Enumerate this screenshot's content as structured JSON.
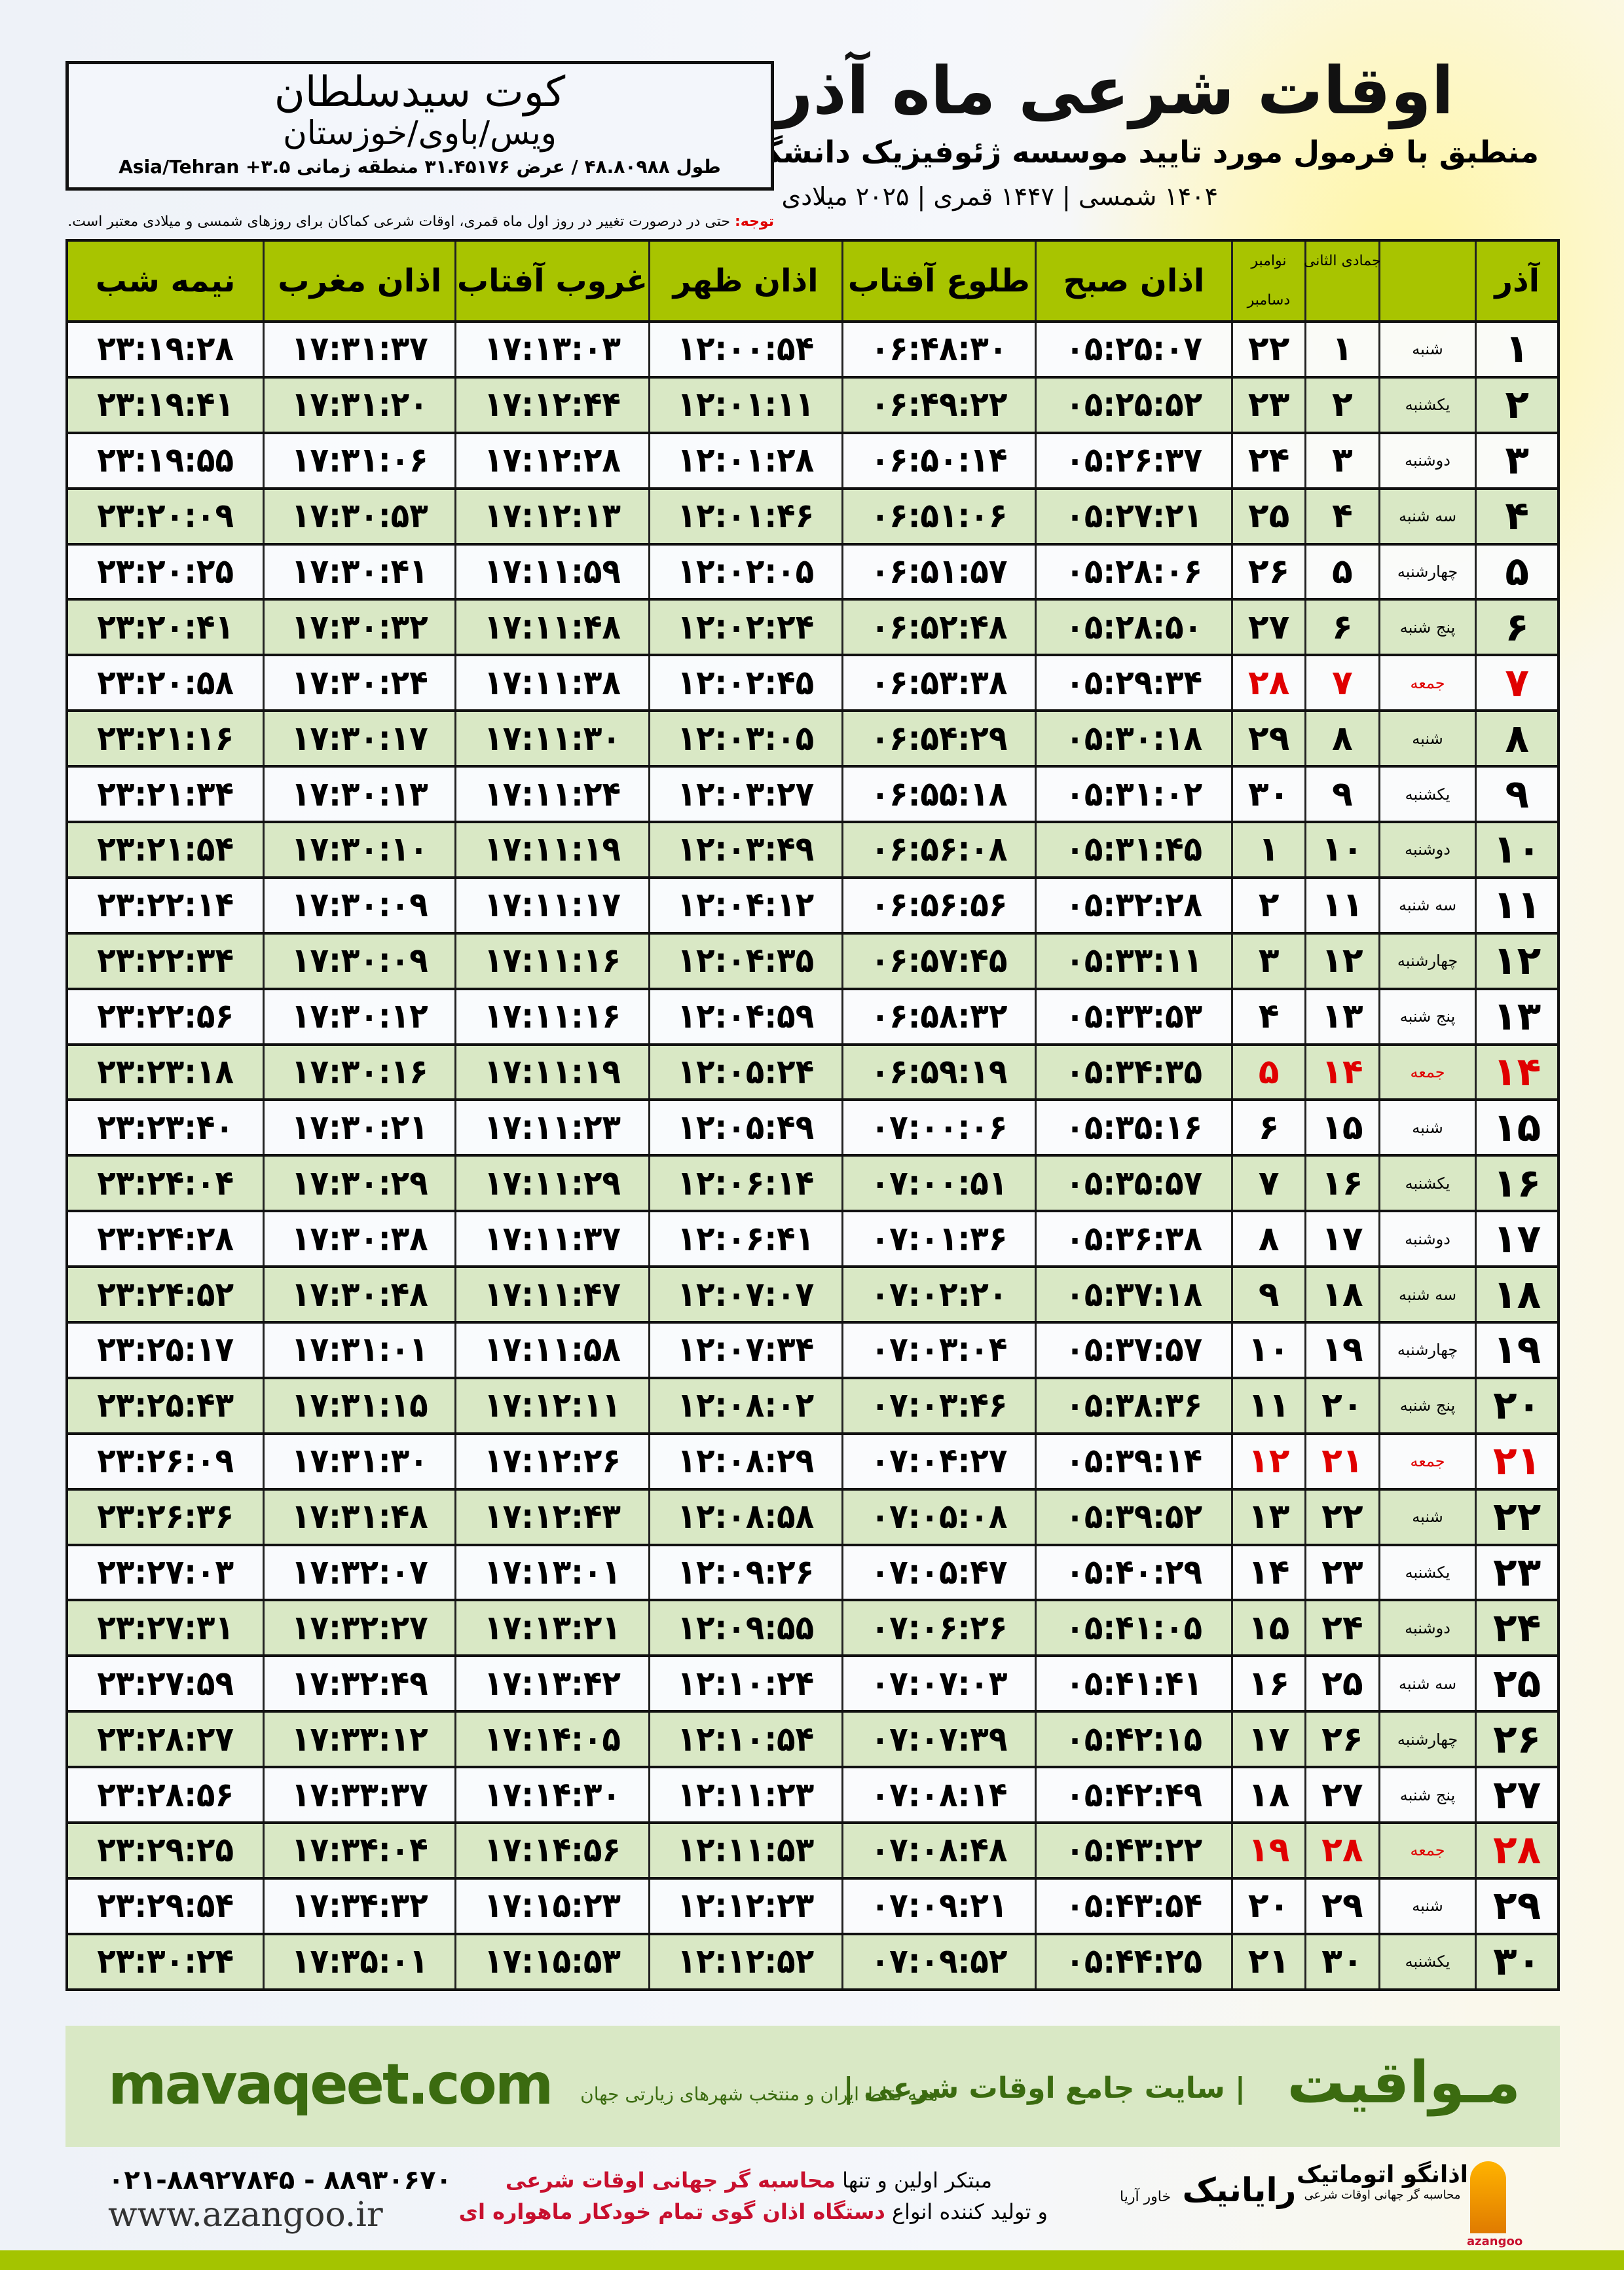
{
  "header": {
    "title": "اوقات شرعی ماه آذر",
    "subtitle": "منطبق با فرمول مورد تایید موسسه ژئوفیزیک دانشگاه تهران",
    "dates": "۱۴۰۴ شمسی | ۱۴۴۷ قمری | ۲۰۲۵ میلادی"
  },
  "location": {
    "city": "کوت سیدسلطان",
    "province": "ویس/باوی/خوزستان",
    "coords": "طول ۴۸.۸۰۹۸۸ / عرض ۳۱.۴۵۱۷۶ منطقه زمانی ۳.۵+ Asia/Tehran"
  },
  "note": {
    "label": "توجه:",
    "text": " حتی در درصورت تغییر در روز اول ماه قمری، اوقات شرعی کماکان برای روزهای شمسی و میلادی معتبر است."
  },
  "columns": {
    "azar": "آذر",
    "hijri": "جمادی الثانی",
    "greg_top": "نوامبر",
    "greg_bottom": "دسامبر",
    "sobh": "اذان صبح",
    "tolu": "طلوع آفتاب",
    "zohr": "اذان ظهر",
    "ghorub": "غروب آفتاب",
    "maghrib": "اذان مغرب",
    "nimeh": "نیمه شب"
  },
  "colors": {
    "header_green": "#a8c400",
    "row_green": "#d9e8c5",
    "friday_red": "#e00000",
    "brand_green": "#3b6b10"
  },
  "rows": [
    [
      "۱",
      "شنبه",
      "۱",
      "۲۲",
      "۰۵:۲۵:۰۷",
      "۰۶:۴۸:۳۰",
      "۱۲:۰۰:۵۴",
      "۱۷:۱۳:۰۳",
      "۱۷:۳۱:۳۷",
      "۲۳:۱۹:۲۸"
    ],
    [
      "۲",
      "یکشنبه",
      "۲",
      "۲۳",
      "۰۵:۲۵:۵۲",
      "۰۶:۴۹:۲۲",
      "۱۲:۰۱:۱۱",
      "۱۷:۱۲:۴۴",
      "۱۷:۳۱:۲۰",
      "۲۳:۱۹:۴۱"
    ],
    [
      "۳",
      "دوشنبه",
      "۳",
      "۲۴",
      "۰۵:۲۶:۳۷",
      "۰۶:۵۰:۱۴",
      "۱۲:۰۱:۲۸",
      "۱۷:۱۲:۲۸",
      "۱۷:۳۱:۰۶",
      "۲۳:۱۹:۵۵"
    ],
    [
      "۴",
      "سه شنبه",
      "۴",
      "۲۵",
      "۰۵:۲۷:۲۱",
      "۰۶:۵۱:۰۶",
      "۱۲:۰۱:۴۶",
      "۱۷:۱۲:۱۳",
      "۱۷:۳۰:۵۳",
      "۲۳:۲۰:۰۹"
    ],
    [
      "۵",
      "چهارشنبه",
      "۵",
      "۲۶",
      "۰۵:۲۸:۰۶",
      "۰۶:۵۱:۵۷",
      "۱۲:۰۲:۰۵",
      "۱۷:۱۱:۵۹",
      "۱۷:۳۰:۴۱",
      "۲۳:۲۰:۲۵"
    ],
    [
      "۶",
      "پنج شنبه",
      "۶",
      "۲۷",
      "۰۵:۲۸:۵۰",
      "۰۶:۵۲:۴۸",
      "۱۲:۰۲:۲۴",
      "۱۷:۱۱:۴۸",
      "۱۷:۳۰:۳۲",
      "۲۳:۲۰:۴۱"
    ],
    [
      "۷",
      "جمعه",
      "۷",
      "۲۸",
      "۰۵:۲۹:۳۴",
      "۰۶:۵۳:۳۸",
      "۱۲:۰۲:۴۵",
      "۱۷:۱۱:۳۸",
      "۱۷:۳۰:۲۴",
      "۲۳:۲۰:۵۸"
    ],
    [
      "۸",
      "شنبه",
      "۸",
      "۲۹",
      "۰۵:۳۰:۱۸",
      "۰۶:۵۴:۲۹",
      "۱۲:۰۳:۰۵",
      "۱۷:۱۱:۳۰",
      "۱۷:۳۰:۱۷",
      "۲۳:۲۱:۱۶"
    ],
    [
      "۹",
      "یکشنبه",
      "۹",
      "۳۰",
      "۰۵:۳۱:۰۲",
      "۰۶:۵۵:۱۸",
      "۱۲:۰۳:۲۷",
      "۱۷:۱۱:۲۴",
      "۱۷:۳۰:۱۳",
      "۲۳:۲۱:۳۴"
    ],
    [
      "۱۰",
      "دوشنبه",
      "۱۰",
      "۱",
      "۰۵:۳۱:۴۵",
      "۰۶:۵۶:۰۸",
      "۱۲:۰۳:۴۹",
      "۱۷:۱۱:۱۹",
      "۱۷:۳۰:۱۰",
      "۲۳:۲۱:۵۴"
    ],
    [
      "۱۱",
      "سه شنبه",
      "۱۱",
      "۲",
      "۰۵:۳۲:۲۸",
      "۰۶:۵۶:۵۶",
      "۱۲:۰۴:۱۲",
      "۱۷:۱۱:۱۷",
      "۱۷:۳۰:۰۹",
      "۲۳:۲۲:۱۴"
    ],
    [
      "۱۲",
      "چهارشنبه",
      "۱۲",
      "۳",
      "۰۵:۳۳:۱۱",
      "۰۶:۵۷:۴۵",
      "۱۲:۰۴:۳۵",
      "۱۷:۱۱:۱۶",
      "۱۷:۳۰:۰۹",
      "۲۳:۲۲:۳۴"
    ],
    [
      "۱۳",
      "پنج شنبه",
      "۱۳",
      "۴",
      "۰۵:۳۳:۵۳",
      "۰۶:۵۸:۳۲",
      "۱۲:۰۴:۵۹",
      "۱۷:۱۱:۱۶",
      "۱۷:۳۰:۱۲",
      "۲۳:۲۲:۵۶"
    ],
    [
      "۱۴",
      "جمعه",
      "۱۴",
      "۵",
      "۰۵:۳۴:۳۵",
      "۰۶:۵۹:۱۹",
      "۱۲:۰۵:۲۴",
      "۱۷:۱۱:۱۹",
      "۱۷:۳۰:۱۶",
      "۲۳:۲۳:۱۸"
    ],
    [
      "۱۵",
      "شنبه",
      "۱۵",
      "۶",
      "۰۵:۳۵:۱۶",
      "۰۷:۰۰:۰۶",
      "۱۲:۰۵:۴۹",
      "۱۷:۱۱:۲۳",
      "۱۷:۳۰:۲۱",
      "۲۳:۲۳:۴۰"
    ],
    [
      "۱۶",
      "یکشنبه",
      "۱۶",
      "۷",
      "۰۵:۳۵:۵۷",
      "۰۷:۰۰:۵۱",
      "۱۲:۰۶:۱۴",
      "۱۷:۱۱:۲۹",
      "۱۷:۳۰:۲۹",
      "۲۳:۲۴:۰۴"
    ],
    [
      "۱۷",
      "دوشنبه",
      "۱۷",
      "۸",
      "۰۵:۳۶:۳۸",
      "۰۷:۰۱:۳۶",
      "۱۲:۰۶:۴۱",
      "۱۷:۱۱:۳۷",
      "۱۷:۳۰:۳۸",
      "۲۳:۲۴:۲۸"
    ],
    [
      "۱۸",
      "سه شنبه",
      "۱۸",
      "۹",
      "۰۵:۳۷:۱۸",
      "۰۷:۰۲:۲۰",
      "۱۲:۰۷:۰۷",
      "۱۷:۱۱:۴۷",
      "۱۷:۳۰:۴۸",
      "۲۳:۲۴:۵۲"
    ],
    [
      "۱۹",
      "چهارشنبه",
      "۱۹",
      "۱۰",
      "۰۵:۳۷:۵۷",
      "۰۷:۰۳:۰۴",
      "۱۲:۰۷:۳۴",
      "۱۷:۱۱:۵۸",
      "۱۷:۳۱:۰۱",
      "۲۳:۲۵:۱۷"
    ],
    [
      "۲۰",
      "پنج شنبه",
      "۲۰",
      "۱۱",
      "۰۵:۳۸:۳۶",
      "۰۷:۰۳:۴۶",
      "۱۲:۰۸:۰۲",
      "۱۷:۱۲:۱۱",
      "۱۷:۳۱:۱۵",
      "۲۳:۲۵:۴۳"
    ],
    [
      "۲۱",
      "جمعه",
      "۲۱",
      "۱۲",
      "۰۵:۳۹:۱۴",
      "۰۷:۰۴:۲۷",
      "۱۲:۰۸:۲۹",
      "۱۷:۱۲:۲۶",
      "۱۷:۳۱:۳۰",
      "۲۳:۲۶:۰۹"
    ],
    [
      "۲۲",
      "شنبه",
      "۲۲",
      "۱۳",
      "۰۵:۳۹:۵۲",
      "۰۷:۰۵:۰۸",
      "۱۲:۰۸:۵۸",
      "۱۷:۱۲:۴۳",
      "۱۷:۳۱:۴۸",
      "۲۳:۲۶:۳۶"
    ],
    [
      "۲۳",
      "یکشنبه",
      "۲۳",
      "۱۴",
      "۰۵:۴۰:۲۹",
      "۰۷:۰۵:۴۷",
      "۱۲:۰۹:۲۶",
      "۱۷:۱۳:۰۱",
      "۱۷:۳۲:۰۷",
      "۲۳:۲۷:۰۳"
    ],
    [
      "۲۴",
      "دوشنبه",
      "۲۴",
      "۱۵",
      "۰۵:۴۱:۰۵",
      "۰۷:۰۶:۲۶",
      "۱۲:۰۹:۵۵",
      "۱۷:۱۳:۲۱",
      "۱۷:۳۲:۲۷",
      "۲۳:۲۷:۳۱"
    ],
    [
      "۲۵",
      "سه شنبه",
      "۲۵",
      "۱۶",
      "۰۵:۴۱:۴۱",
      "۰۷:۰۷:۰۳",
      "۱۲:۱۰:۲۴",
      "۱۷:۱۳:۴۲",
      "۱۷:۳۲:۴۹",
      "۲۳:۲۷:۵۹"
    ],
    [
      "۲۶",
      "چهارشنبه",
      "۲۶",
      "۱۷",
      "۰۵:۴۲:۱۵",
      "۰۷:۰۷:۳۹",
      "۱۲:۱۰:۵۴",
      "۱۷:۱۴:۰۵",
      "۱۷:۳۳:۱۲",
      "۲۳:۲۸:۲۷"
    ],
    [
      "۲۷",
      "پنج شنبه",
      "۲۷",
      "۱۸",
      "۰۵:۴۲:۴۹",
      "۰۷:۰۸:۱۴",
      "۱۲:۱۱:۲۳",
      "۱۷:۱۴:۳۰",
      "۱۷:۳۳:۳۷",
      "۲۳:۲۸:۵۶"
    ],
    [
      "۲۸",
      "جمعه",
      "۲۸",
      "۱۹",
      "۰۵:۴۳:۲۲",
      "۰۷:۰۸:۴۸",
      "۱۲:۱۱:۵۳",
      "۱۷:۱۴:۵۶",
      "۱۷:۳۴:۰۴",
      "۲۳:۲۹:۲۵"
    ],
    [
      "۲۹",
      "شنبه",
      "۲۹",
      "۲۰",
      "۰۵:۴۳:۵۴",
      "۰۷:۰۹:۲۱",
      "۱۲:۱۲:۲۳",
      "۱۷:۱۵:۲۳",
      "۱۷:۳۴:۳۲",
      "۲۳:۲۹:۵۴"
    ],
    [
      "۳۰",
      "یکشنبه",
      "۳۰",
      "۲۱",
      "۰۵:۴۴:۲۵",
      "۰۷:۰۹:۵۲",
      "۱۲:۱۲:۵۲",
      "۱۷:۱۵:۵۳",
      "۱۷:۳۵:۰۱",
      "۲۳:۳۰:۲۴"
    ]
  ],
  "friday_rows": [
    7,
    14,
    21,
    28
  ],
  "footer": {
    "brand": "مـواقیت",
    "tagline": "| سایت جامع اوقات شرعی |",
    "tag2": "همه نقاط ایران و منتخب شهرهای زیارتی جهان",
    "site": "mavaqeet.com",
    "promo1_a": "مبتکر اولین و تنها ",
    "promo1_b": "محاسبه گر جهانی اوقات شرعی",
    "promo2_a": "و تولید کننده انواع ",
    "promo2_b": "دستگاه اذان گوی تمام خودکار ماهواره ای",
    "raynik": "رایانیک",
    "raynik_sub": "خاور آریا",
    "azangoo": "اذانگو اتوماتیک",
    "azangoo_sub": "محاسبه گر جهانی اوقات شرعی",
    "azangoo_en": "azangoo",
    "phone": "۰۲۱-۸۸۹۲۷۸۴۵ - ۸۸۹۳۰۶۷۰",
    "web": "www.azangoo.ir"
  }
}
